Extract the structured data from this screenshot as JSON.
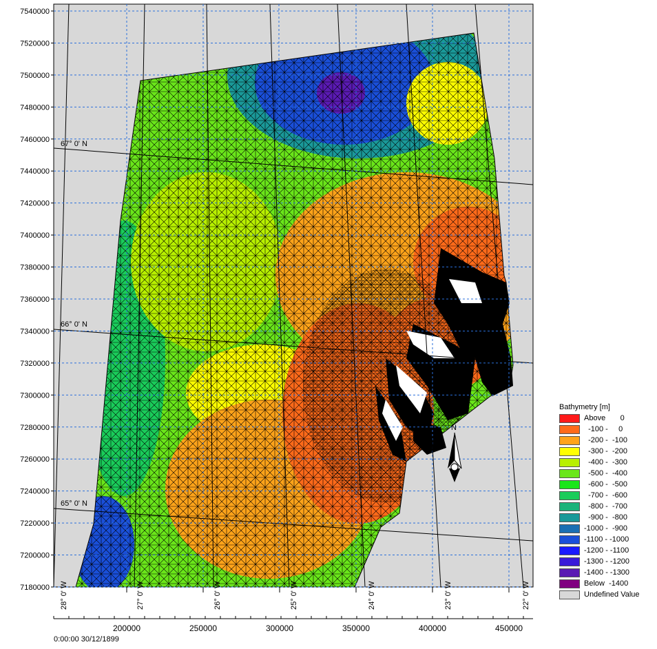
{
  "view": {
    "timestamp": "0:00:00 30/12/1899"
  },
  "map": {
    "y_axis_labels": [
      "7540000",
      "7520000",
      "7500000",
      "7480000",
      "7460000",
      "7440000",
      "7420000",
      "7400000",
      "7380000",
      "7360000",
      "7340000",
      "7320000",
      "7300000",
      "7280000",
      "7260000",
      "7240000",
      "7220000",
      "7200000",
      "7180000"
    ],
    "x_axis_labels": [
      "200000",
      "250000",
      "300000",
      "350000",
      "400000",
      "450000"
    ],
    "latitude_labels": [
      "67° 0' N",
      "66° 0' N",
      "65° 0' N"
    ],
    "longitude_labels": [
      "28° 0' W",
      "27° 0' W",
      "26° 0' W",
      "25° 0' W",
      "24° 0' W",
      "23° 0' W",
      "22° 0' W"
    ],
    "north_arrow_label": "N",
    "colors": {
      "undefined": "#d8d8d8",
      "grid_dashed": "#2a6fdb",
      "mesh": "#000000",
      "land": "#000000"
    }
  },
  "legend": {
    "title": "Bathymetry [m]",
    "items": [
      {
        "label": "Above       0",
        "color": "#ff1a1a"
      },
      {
        "label": "  -100 -     0",
        "color": "#ff6a1a"
      },
      {
        "label": "  -200 -  -100",
        "color": "#ffa31a"
      },
      {
        "label": "  -300 -  -200",
        "color": "#ffff00"
      },
      {
        "label": "  -400 -  -300",
        "color": "#b8f000"
      },
      {
        "label": "  -500 -  -400",
        "color": "#6ae61a"
      },
      {
        "label": "  -600 -  -500",
        "color": "#1ae61a"
      },
      {
        "label": "  -700 -  -600",
        "color": "#1acc5a"
      },
      {
        "label": "  -800 -  -700",
        "color": "#1ab37a"
      },
      {
        "label": "  -900 -  -800",
        "color": "#1a9999"
      },
      {
        "label": "-1000 -  -900",
        "color": "#1a6fb3"
      },
      {
        "label": "-1100 - -1000",
        "color": "#1a4fd9"
      },
      {
        "label": "-1200 - -1100",
        "color": "#1a1aff"
      },
      {
        "label": "-1300 - -1200",
        "color": "#3a1ad9"
      },
      {
        "label": "-1400 - -1300",
        "color": "#5a1ab3"
      },
      {
        "label": "Below  -1400",
        "color": "#800080"
      },
      {
        "label": "Undefined Value",
        "color": "#d8d8d8"
      }
    ]
  }
}
